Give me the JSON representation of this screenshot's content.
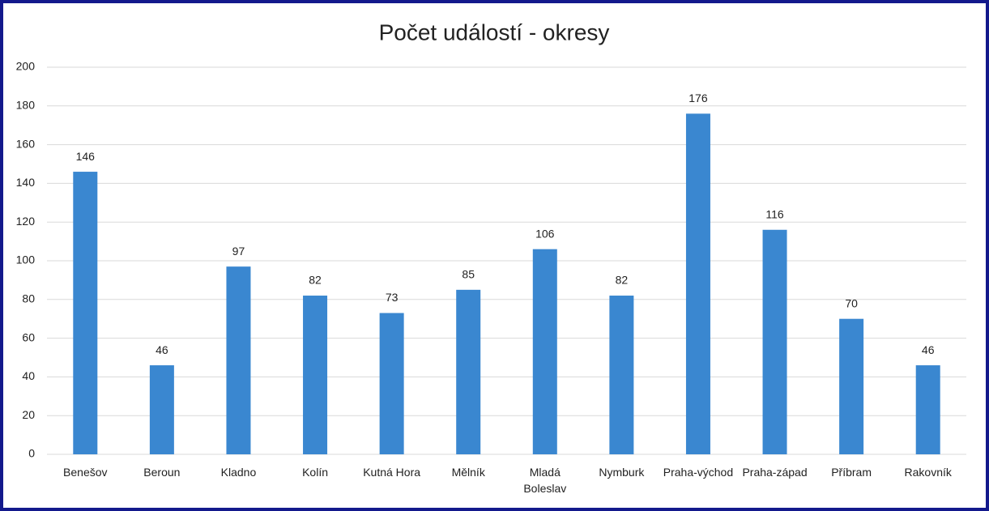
{
  "chart_data": {
    "type": "bar",
    "title": "Počet událostí - okresy",
    "categories": [
      "Benešov",
      "Beroun",
      "Kladno",
      "Kolín",
      "Kutná Hora",
      "Mělník",
      "Mladá Boleslav",
      "Nymburk",
      "Praha-východ",
      "Praha-západ",
      "Příbram",
      "Rakovník"
    ],
    "values": [
      146,
      46,
      97,
      82,
      73,
      85,
      106,
      82,
      176,
      116,
      70,
      46
    ],
    "color": "#3a87d0",
    "ylim": [
      0,
      200
    ],
    "yticks": [
      0,
      20,
      40,
      60,
      80,
      100,
      120,
      140,
      160,
      180,
      200
    ],
    "grid": true
  }
}
